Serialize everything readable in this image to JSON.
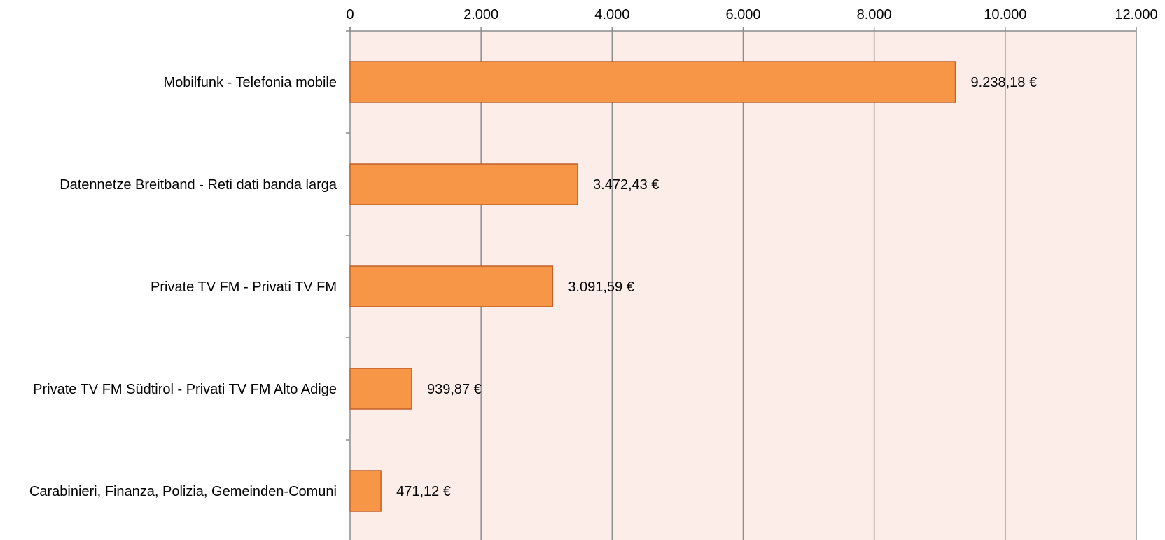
{
  "chart_data": {
    "type": "bar",
    "orientation": "horizontal",
    "categories": [
      "Mobilfunk - Telefonia mobile",
      "Datennetze Breitband - Reti dati banda larga",
      "Private TV FM - Privati TV FM",
      "Private TV FM Südtirol - Privati TV FM Alto Adige",
      "Carabinieri, Finanza, Polizia, Gemeinden-Comuni"
    ],
    "values": [
      9238.18,
      3472.43,
      3091.59,
      939.87,
      471.12
    ],
    "value_labels": [
      "9.238,18 €",
      "3.472,43 €",
      "3.091,59 €",
      "939,87 €",
      "471,12 €"
    ],
    "xlim": [
      0,
      12000
    ],
    "x_ticks": [
      0,
      2000,
      4000,
      6000,
      8000,
      10000,
      12000
    ],
    "x_tick_labels": [
      "0",
      "2.000",
      "4.000",
      "6.000",
      "8.000",
      "10.000",
      "12.000"
    ],
    "x_axis_position": "top",
    "grid": true,
    "colors": {
      "bar_fill": "#F79646",
      "bar_stroke": "#C0602A",
      "plot_background": "#FDEDE8",
      "gridline": "#8C8C8C",
      "axis": "#8C8C8C"
    }
  }
}
